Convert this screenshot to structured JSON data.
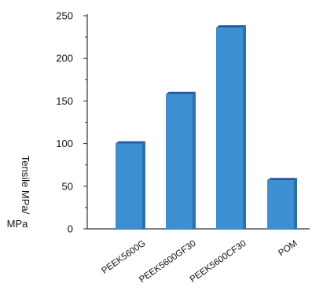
{
  "chart_data": {
    "type": "bar",
    "title": "",
    "xlabel": "",
    "ylabel": "Tensile MPa/",
    "ylabel_unit": "MPa",
    "categories": [
      "PEEK5600G",
      "PEEK5600GF30",
      "PEEK5600CF30",
      "POM"
    ],
    "values": [
      100,
      158,
      236,
      57
    ],
    "ylim": [
      0,
      250
    ],
    "yticks": [
      0,
      50,
      100,
      150,
      200,
      250
    ],
    "grid": false,
    "colors": {
      "bar_front": "#3b8fd2",
      "bar_side": "#2a6fae",
      "bar_top": "#1f5aa6",
      "axis": "#333333"
    }
  }
}
